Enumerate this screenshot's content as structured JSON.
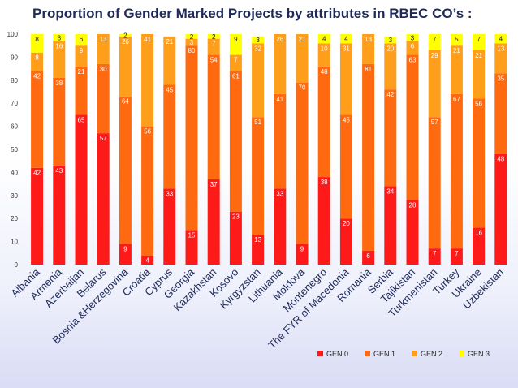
{
  "chart_data": {
    "type": "bar",
    "stacked": true,
    "title": "Proportion of Gender Marked Projects by attributes in RBEC CO’s :",
    "xlabel": "",
    "ylabel": "",
    "ylim": [
      0,
      100
    ],
    "yticks": [
      0,
      10,
      20,
      30,
      40,
      50,
      60,
      70,
      80,
      90,
      100
    ],
    "legend_position": "bottom-right",
    "categories": [
      "Albania",
      "Armenia",
      "Azerbaijan",
      "Belarus",
      "Bosnia &Herzegovina",
      "Croatia",
      "Cyprus",
      "Georgia",
      "Kazakhstan",
      "Kosovo",
      "Kyrgyzstan",
      "Lithuania",
      "Moldova",
      "Montenegro",
      "The FYR of Macedonia",
      "Romania",
      "Serbia",
      "Tajikistan",
      "Turkmenistan",
      "Turkey",
      "Ukraine",
      "Uzbekistan"
    ],
    "series": [
      {
        "name": "GEN 0",
        "color": "#ff1a1a",
        "values": [
          42,
          43,
          65,
          57,
          9,
          4,
          33,
          15,
          37,
          23,
          13,
          33,
          9,
          38,
          20,
          6,
          34,
          28,
          7,
          7,
          16,
          48
        ]
      },
      {
        "name": "GEN 1",
        "color": "#ff6a10",
        "values": [
          42,
          38,
          21,
          30,
          64,
          56,
          45,
          80,
          54,
          61,
          51,
          41,
          70,
          48,
          45,
          81,
          42,
          63,
          57,
          67,
          56,
          35
        ]
      },
      {
        "name": "GEN 2",
        "color": "#ff9e1a",
        "values": [
          8,
          16,
          9,
          13,
          26,
          41,
          21,
          3,
          7,
          7,
          32,
          26,
          21,
          10,
          31,
          13,
          20,
          6,
          29,
          21,
          21,
          13
        ]
      },
      {
        "name": "GEN 3",
        "color": "#ffff00",
        "values": [
          8,
          3,
          6,
          null,
          2,
          null,
          null,
          2,
          2,
          9,
          3,
          null,
          null,
          4,
          4,
          null,
          3,
          3,
          7,
          5,
          7,
          4
        ]
      }
    ]
  }
}
